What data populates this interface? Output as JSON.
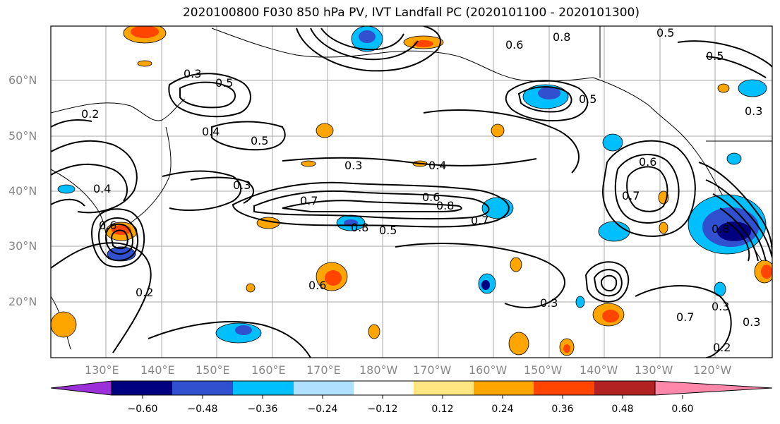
{
  "title": "2020100800 F030 850 hPa PV, IVT Landfall PC (2020101100 - 2020101300)",
  "lat_labels": [
    "60°N",
    "50°N",
    "40°N",
    "30°N",
    "20°N"
  ],
  "lon_labels": [
    "130°E",
    "140°E",
    "150°E",
    "160°E",
    "170°E",
    "180°W",
    "170°W",
    "160°W",
    "150°W",
    "140°W",
    "130°W",
    "120°W"
  ],
  "contour_labels": [
    "0.3",
    "0.5",
    "0.2",
    "0.4",
    "0.5",
    "0.3",
    "0.4",
    "0.3",
    "0.7",
    "0.6",
    "0.8",
    "0.7",
    "0.8",
    "0.5",
    "0.6",
    "0.5",
    "0.6",
    "0.7",
    "0.8",
    "0.6",
    "0.3",
    "0.2",
    "0.3",
    "0.4",
    "0.3",
    "0.2",
    "0.5",
    "0.5",
    "0.8",
    "0.7",
    "0.3",
    "0.6"
  ],
  "colorbar": {
    "colors": [
      "#9b30d9",
      "#000080",
      "#3050d0",
      "#00bfff",
      "#b0e0ff",
      "#ffffff",
      "#ffe680",
      "#ffa500",
      "#ff4500",
      "#b22222",
      "#ff88aa"
    ],
    "ticks": [
      "−0.60",
      "−0.48",
      "−0.36",
      "−0.24",
      "−0.12",
      "0.12",
      "0.24",
      "0.36",
      "0.48",
      "0.60"
    ]
  }
}
